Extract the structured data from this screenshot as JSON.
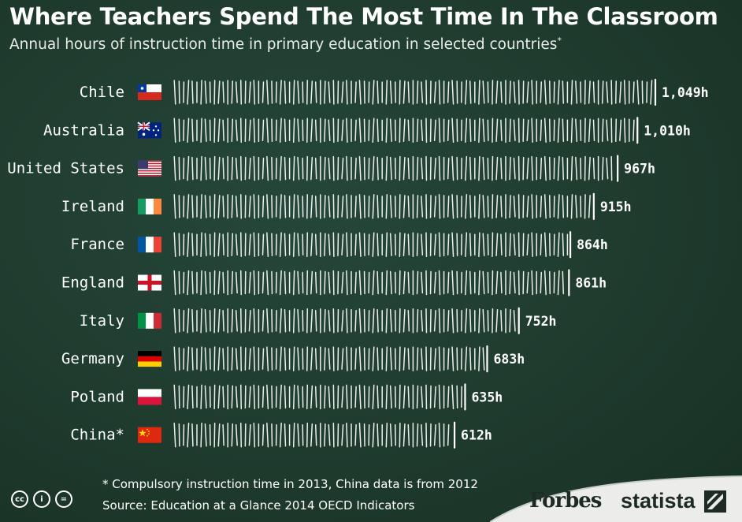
{
  "header": {
    "title": "Where Teachers Spend The Most Time In The Classroom",
    "subtitle": "Annual hours of instruction time in primary education in selected countries",
    "subtitle_mark": "*"
  },
  "footer": {
    "note": "* Compulsory instruction time in 2013, China data is from 2012",
    "source": "Source: Education at a Glance 2014 OECD Indicators",
    "cc_icons": [
      "cc-icon",
      "by-icon",
      "nd-icon"
    ],
    "cc_glyphs": [
      "cc",
      "i",
      "="
    ],
    "brand_forbes": "Forbes",
    "brand_statista": "statista"
  },
  "chart_data": {
    "type": "bar",
    "orientation": "horizontal",
    "categories": [
      "Chile",
      "Australia",
      "United States",
      "Ireland",
      "France",
      "England",
      "Italy",
      "Germany",
      "Poland",
      "China*"
    ],
    "values": [
      1049,
      1010,
      967,
      915,
      864,
      861,
      752,
      683,
      635,
      612
    ],
    "value_labels": [
      "1,049h",
      "1,010h",
      "967h",
      "915h",
      "864h",
      "861h",
      "752h",
      "683h",
      "635h",
      "612h"
    ],
    "flags": [
      "chile-flag-icon",
      "australia-flag-icon",
      "usa-flag-icon",
      "ireland-flag-icon",
      "france-flag-icon",
      "england-flag-icon",
      "italy-flag-icon",
      "germany-flag-icon",
      "poland-flag-icon",
      "china-flag-icon"
    ],
    "xlim": [
      0,
      1049
    ],
    "grid": false,
    "bar_style": "chalk tally marks",
    "colors": {
      "background": "#1e3a2d",
      "chalk": "#ffffff"
    }
  }
}
